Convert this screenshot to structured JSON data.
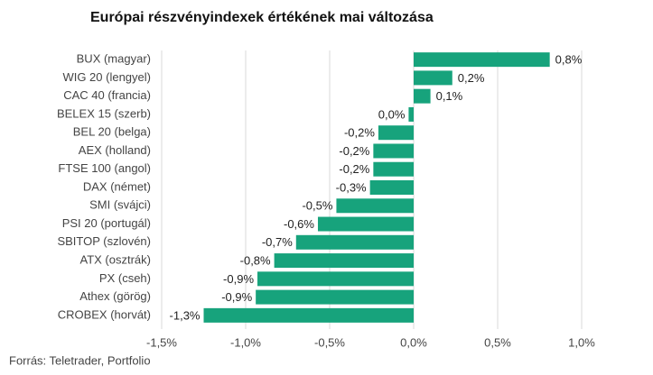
{
  "chart_data": {
    "type": "bar",
    "orientation": "horizontal",
    "title": "Európai részvényindexek értékének mai változása",
    "source": "Forrás: Teletrader, Portfolio",
    "categories": [
      "BUX (magyar)",
      "WIG 20 (lengyel)",
      "CAC 40 (francia)",
      "BELEX 15 (szerb)",
      "BEL 20 (belga)",
      "AEX (holland)",
      "FTSE 100 (angol)",
      "DAX (német)",
      "SMI (svájci)",
      "PSI 20 (portugál)",
      "SBITOP (szlovén)",
      "ATX (osztrák)",
      "PX (cseh)",
      "Athex (görög)",
      "CROBEX (horvát)"
    ],
    "values": [
      0.81,
      0.23,
      0.1,
      -0.03,
      -0.21,
      -0.24,
      -0.24,
      -0.26,
      -0.46,
      -0.57,
      -0.7,
      -0.83,
      -0.93,
      -0.94,
      -1.25
    ],
    "value_labels": [
      "0,8%",
      "0,2%",
      "0,1%",
      "0,0%",
      "-0,2%",
      "-0,2%",
      "-0,2%",
      "-0,3%",
      "-0,5%",
      "-0,6%",
      "-0,7%",
      "-0,8%",
      "-0,9%",
      "-0,9%",
      "-1,3%"
    ],
    "color": "#17a37c",
    "xlim": [
      -1.5,
      1.0
    ],
    "xticks": [
      {
        "value": -1.5,
        "label": "-1,5%"
      },
      {
        "value": -1.0,
        "label": "-1,0%"
      },
      {
        "value": -0.5,
        "label": "-0,5%"
      },
      {
        "value": 0.0,
        "label": "0,0%"
      },
      {
        "value": 0.5,
        "label": "0,5%"
      },
      {
        "value": 1.0,
        "label": "1,0%"
      }
    ],
    "grid": true
  }
}
